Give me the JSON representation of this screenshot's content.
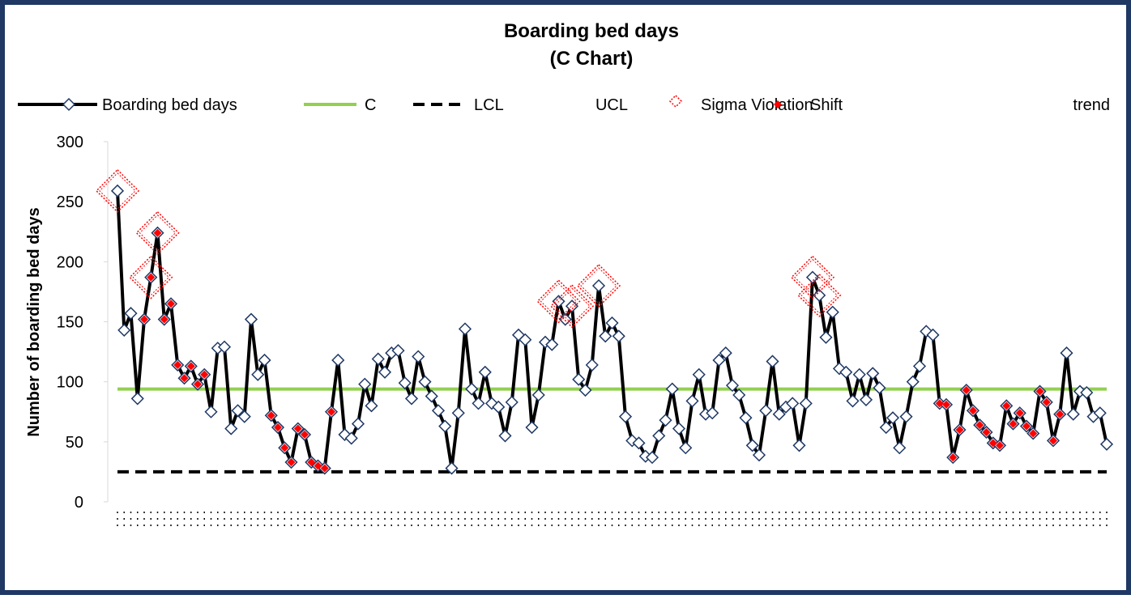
{
  "chart_data": {
    "type": "line",
    "title": "Boarding bed days",
    "subtitle": "(C Chart)",
    "y_label": "Number of boarding bed days",
    "ylim": [
      0,
      300
    ],
    "yticks": [
      0,
      50,
      100,
      150,
      200,
      250,
      300
    ],
    "series": [
      {
        "name": "Boarding bed days",
        "color": "#000000",
        "marker_color": "#1f3864",
        "values": [
          259,
          143,
          157,
          86,
          152,
          187,
          224,
          152,
          165,
          114,
          103,
          113,
          98,
          106,
          75,
          128,
          129,
          61,
          76,
          71,
          152,
          106,
          118,
          72,
          62,
          45,
          33,
          61,
          56,
          33,
          30,
          28,
          75,
          118,
          56,
          53,
          65,
          98,
          80,
          119,
          108,
          124,
          126,
          99,
          86,
          121,
          100,
          88,
          76,
          63,
          28,
          74,
          144,
          94,
          82,
          108,
          82,
          79,
          55,
          83,
          139,
          135,
          62,
          89,
          133,
          131,
          167,
          152,
          163,
          102,
          93,
          114,
          180,
          138,
          149,
          138,
          71,
          51,
          49,
          38,
          37,
          55,
          68,
          94,
          61,
          45,
          84,
          106,
          73,
          74,
          118,
          124,
          97,
          89,
          70,
          47,
          39,
          76,
          117,
          73,
          79,
          82,
          47,
          82,
          187,
          172,
          137,
          158,
          111,
          108,
          84,
          106,
          85,
          107,
          95,
          62,
          70,
          45,
          71,
          100,
          113,
          142,
          139,
          82,
          81,
          37,
          60,
          93,
          76,
          64,
          58,
          49,
          47,
          80,
          65,
          74,
          63,
          57,
          92,
          83,
          51,
          73,
          124,
          73,
          92,
          91,
          71,
          74,
          48
        ]
      },
      {
        "name": "C",
        "color": "#92d050",
        "value": 94
      },
      {
        "name": "LCL",
        "color": "#000000",
        "value": 25
      },
      {
        "name": "UCL"
      },
      {
        "name": "Sigma Violation",
        "color": "#ff0000",
        "x": [
          0,
          5,
          6,
          66,
          68,
          72,
          104,
          105
        ],
        "values": [
          259,
          187,
          224,
          167,
          163,
          180,
          187,
          172
        ]
      },
      {
        "name": "Shift",
        "color": "#ff0000",
        "x": [
          4,
          5,
          6,
          7,
          8,
          9,
          10,
          11,
          12,
          13,
          23,
          24,
          25,
          26,
          27,
          28,
          29,
          30,
          31,
          32,
          123,
          124,
          125,
          126,
          127,
          128,
          129,
          130,
          131,
          132,
          133,
          134,
          135,
          136,
          137,
          138,
          139,
          140,
          141
        ],
        "values": [
          152,
          187,
          224,
          152,
          165,
          114,
          103,
          113,
          98,
          106,
          72,
          62,
          45,
          33,
          61,
          56,
          33,
          30,
          28,
          75,
          82,
          81,
          37,
          60,
          93,
          76,
          64,
          58,
          49,
          47,
          80,
          65,
          74,
          63,
          57,
          92,
          83,
          51,
          73
        ]
      },
      {
        "name": "trend"
      }
    ]
  }
}
